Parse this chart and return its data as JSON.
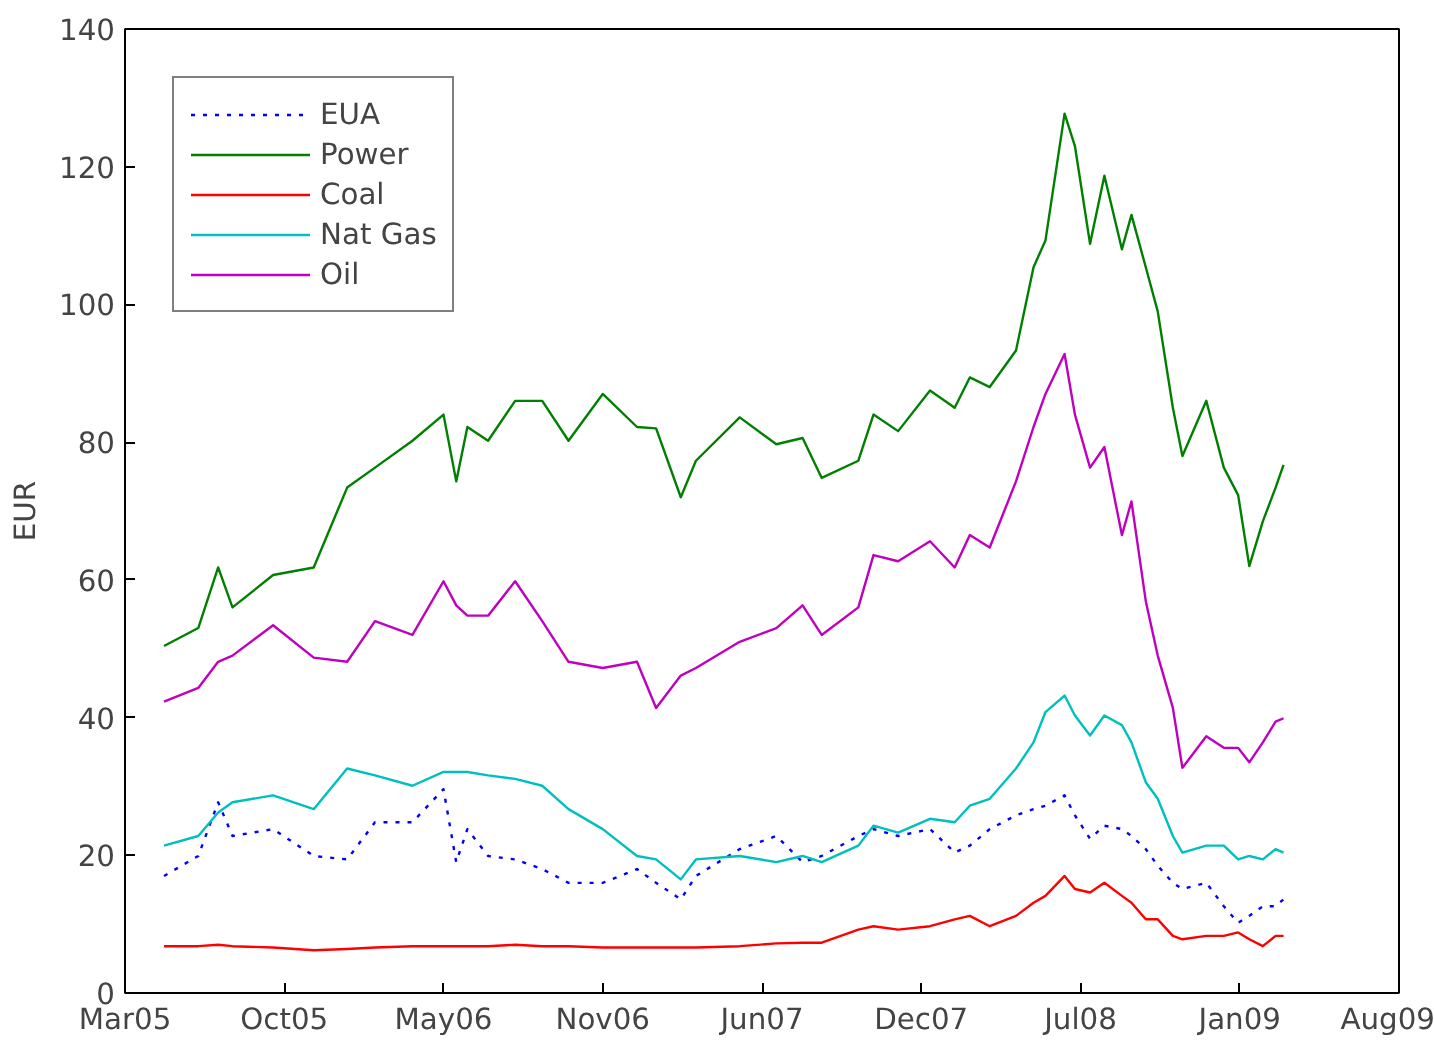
{
  "chart_data": {
    "type": "line",
    "ylabel": "EUR",
    "x": [
      "2005-05-17",
      "2005-06-29",
      "2005-07-24",
      "2005-08-11",
      "2005-10-01",
      "2005-11-21",
      "2006-01-02",
      "2006-02-06",
      "2006-03-25",
      "2006-05-03",
      "2006-05-19",
      "2006-06-02",
      "2006-06-28",
      "2006-08-01",
      "2006-09-04",
      "2006-10-07",
      "2006-11-19",
      "2007-01-01",
      "2007-01-25",
      "2007-02-25",
      "2007-03-16",
      "2007-05-10",
      "2007-06-25",
      "2007-07-28",
      "2007-08-21",
      "2007-10-06",
      "2007-10-25",
      "2007-11-25",
      "2008-01-04",
      "2008-02-04",
      "2008-02-23",
      "2008-03-19",
      "2008-04-21",
      "2008-05-13",
      "2008-05-28",
      "2008-06-21",
      "2008-07-04",
      "2008-07-23",
      "2008-08-10",
      "2008-09-01",
      "2008-09-13",
      "2008-10-01",
      "2008-10-16",
      "2008-11-04",
      "2008-11-16",
      "2008-12-16",
      "2009-01-07",
      "2009-01-25",
      "2009-02-08",
      "2009-02-25",
      "2009-03-13",
      "2009-03-23"
    ],
    "series": [
      {
        "name": "EUA",
        "color": "#0000ff",
        "line_style": "dotted",
        "values": [
          17,
          19.9,
          27.7,
          22.8,
          23.8,
          19.9,
          19.4,
          24.8,
          24.8,
          29.6,
          19,
          23.8,
          19.9,
          19.4,
          18,
          16,
          16,
          18,
          16,
          13.6,
          17,
          20.9,
          22.8,
          19,
          19.9,
          22.8,
          23.8,
          22.8,
          23.8,
          20.4,
          21.4,
          23.8,
          25.8,
          26.7,
          27.2,
          28.7,
          25.8,
          22.4,
          24.3,
          23.8,
          22.8,
          20.9,
          18.5,
          16,
          15.1,
          16,
          12.6,
          10.2,
          11.2,
          12.6,
          12.6,
          13.6
        ]
      },
      {
        "name": "Power",
        "color": "#008000",
        "values": [
          50.4,
          53,
          61.8,
          56,
          60.7,
          61.8,
          73.4,
          76.3,
          80.2,
          84,
          74.3,
          82.2,
          80.2,
          86,
          86,
          80.2,
          87,
          82.2,
          82,
          72,
          77.3,
          83.6,
          79.7,
          80.6,
          74.8,
          77.3,
          84,
          81.6,
          87.5,
          85,
          89.4,
          88,
          93.3,
          105.4,
          109.3,
          127.7,
          123,
          108.8,
          118.7,
          108,
          113,
          105.4,
          99,
          85,
          78,
          86,
          76.3,
          72.3,
          62,
          68.5,
          73.4,
          76.7
        ]
      },
      {
        "name": "Coal",
        "color": "#ff0000",
        "values": [
          6.8,
          6.8,
          7,
          6.8,
          6.6,
          6.2,
          6.4,
          6.6,
          6.8,
          6.8,
          6.8,
          6.8,
          6.8,
          7,
          6.8,
          6.8,
          6.6,
          6.6,
          6.6,
          6.6,
          6.6,
          6.8,
          7.2,
          7.3,
          7.3,
          9.2,
          9.7,
          9.2,
          9.7,
          10.7,
          11.2,
          9.7,
          11.2,
          13.1,
          14.1,
          17,
          15.1,
          14.6,
          16,
          14.1,
          13.1,
          10.7,
          10.7,
          8.3,
          7.8,
          8.3,
          8.3,
          8.8,
          7.8,
          6.8,
          8.3,
          8.3
        ]
      },
      {
        "name": "Nat Gas",
        "color": "#00bfbf",
        "values": [
          21.4,
          22.8,
          26.2,
          27.7,
          28.7,
          26.7,
          32.6,
          31.6,
          30.1,
          32.1,
          32.1,
          32.1,
          31.6,
          31.1,
          30.1,
          26.7,
          23.8,
          19.9,
          19.4,
          16.5,
          19.4,
          19.9,
          19,
          19.9,
          19,
          21.4,
          24.3,
          23.3,
          25.3,
          24.8,
          27.2,
          28.2,
          32.6,
          36.4,
          40.8,
          43.2,
          40.3,
          37.4,
          40.3,
          38.9,
          36.4,
          30.6,
          28.2,
          22.8,
          20.4,
          21.4,
          21.4,
          19.4,
          19.9,
          19.4,
          20.9,
          20.4
        ]
      },
      {
        "name": "Oil",
        "color": "#bf00bf",
        "values": [
          42.3,
          44.3,
          48.1,
          49,
          53.4,
          48.7,
          48.1,
          54,
          52,
          59.8,
          56.3,
          54.8,
          54.8,
          59.8,
          54,
          48.1,
          47.2,
          48.1,
          41.4,
          46.1,
          47.2,
          51,
          53,
          56.3,
          52,
          56,
          63.6,
          62.7,
          65.6,
          61.8,
          66.5,
          64.7,
          74.3,
          82.2,
          87,
          92.8,
          84,
          76.3,
          79.3,
          66.5,
          71.4,
          56.9,
          49,
          41.4,
          32.7,
          37.3,
          35.6,
          35.6,
          33.5,
          36.4,
          39.4,
          39.9
        ]
      }
    ],
    "xlim": [
      "2005-03-29",
      "2009-08-15"
    ],
    "xticks": [
      {
        "value": "2005-03-29",
        "label": "Mar05"
      },
      {
        "value": "2005-10-15",
        "label": "Oct05"
      },
      {
        "value": "2006-05-03",
        "label": "May06"
      },
      {
        "value": "2006-11-19",
        "label": "Nov06"
      },
      {
        "value": "2007-06-07",
        "label": "Jun07"
      },
      {
        "value": "2007-12-24",
        "label": "Dec07"
      },
      {
        "value": "2008-07-11",
        "label": "Jul08"
      },
      {
        "value": "2009-01-27",
        "label": "Jan09"
      },
      {
        "value": "2009-08-15",
        "label": "Aug09"
      }
    ],
    "ylim": [
      0,
      140
    ],
    "yticks": [
      0,
      20,
      40,
      60,
      80,
      100,
      120,
      140
    ],
    "legend": "top left",
    "grid": false
  }
}
